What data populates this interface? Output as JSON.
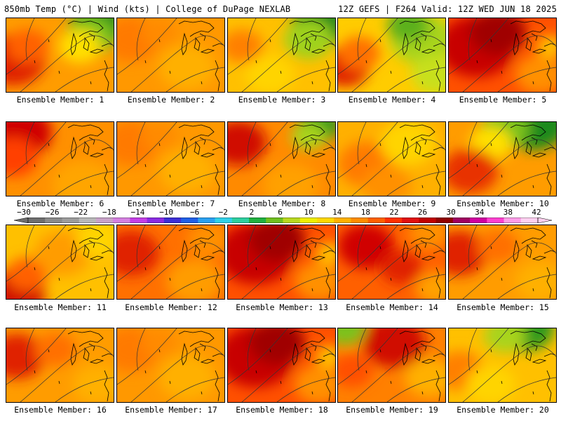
{
  "header": {
    "left": "850mb Temp (°C) | Wind (kts) | College of DuPage NEXLAB",
    "right": "12Z GEFS | F264 Valid: 12Z WED JUN 18 2025"
  },
  "colorbar": {
    "labels": [
      "−30",
      "−26",
      "−22",
      "−18",
      "−14",
      "−10",
      "−6",
      "−2",
      "2",
      "6",
      "10",
      "14",
      "18",
      "22",
      "26",
      "30",
      "34",
      "38",
      "42"
    ],
    "colors": [
      "#6e6e6e",
      "#8a8a8a",
      "#9c9c9c",
      "#b8b8b8",
      "#c8a2c8",
      "#d47fe0",
      "#c43fe6",
      "#8a2be2",
      "#3c2ed6",
      "#1f5fe6",
      "#2aa0f0",
      "#30d0e8",
      "#2ecf9f",
      "#20b040",
      "#6fbf1f",
      "#b8d81f",
      "#eeee00",
      "#ffd700",
      "#ffb000",
      "#ff8c00",
      "#ff6000",
      "#ff3000",
      "#e01010",
      "#c00000",
      "#900000",
      "#a00060",
      "#d000a0",
      "#ff40d0",
      "#ff9ce8",
      "#ffd0f0"
    ]
  },
  "members": [
    {
      "label": "Ensemble Member: 1",
      "style": "west-hot-ne-green"
    },
    {
      "label": "Ensemble Member: 2",
      "style": "orange"
    },
    {
      "label": "Ensemble Member: 3",
      "style": "yellow-ne-green"
    },
    {
      "label": "Ensemble Member: 4",
      "style": "yellow-green-east"
    },
    {
      "label": "Ensemble Member: 5",
      "style": "red-hot"
    },
    {
      "label": "Ensemble Member: 6",
      "style": "red-northwest"
    },
    {
      "label": "Ensemble Member: 7",
      "style": "orange"
    },
    {
      "label": "Ensemble Member: 8",
      "style": "red-west-ne-green"
    },
    {
      "label": "Ensemble Member: 9",
      "style": "yellow-orange"
    },
    {
      "label": "Ensemble Member: 10",
      "style": "green-north"
    },
    {
      "label": "Ensemble Member: 11",
      "style": "yellow-sw-red"
    },
    {
      "label": "Ensemble Member: 12",
      "style": "orange-red"
    },
    {
      "label": "Ensemble Member: 13",
      "style": "red-hot"
    },
    {
      "label": "Ensemble Member: 14",
      "style": "red-orange"
    },
    {
      "label": "Ensemble Member: 15",
      "style": "orange-west-red"
    },
    {
      "label": "Ensemble Member: 16",
      "style": "orange-west-red"
    },
    {
      "label": "Ensemble Member: 17",
      "style": "orange"
    },
    {
      "label": "Ensemble Member: 18",
      "style": "red-hot"
    },
    {
      "label": "Ensemble Member: 19",
      "style": "red-orange-north"
    },
    {
      "label": "Ensemble Member: 20",
      "style": "yellow-green-north"
    }
  ]
}
